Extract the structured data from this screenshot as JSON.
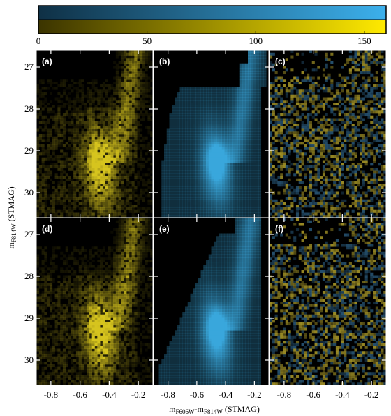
{
  "colors": {
    "panel_bg": "#000000",
    "data": "#d6c41e",
    "model": "#39a7dc",
    "residual_pos": "#b3a12a",
    "residual_neg": "#2b5d80",
    "colorbar_top_left": "#0f3045",
    "colorbar_top_right": "#3cb0ec",
    "colorbar_bottom_left": "#3b3400",
    "colorbar_bottom_right": "#ffea00"
  },
  "chart_data": {
    "type": "heatmap",
    "title": "",
    "colorbar": {
      "range": [
        0,
        160
      ],
      "ticks": [
        {
          "value": 0,
          "label": "0"
        },
        {
          "value": 50,
          "label": "50"
        },
        {
          "value": 100,
          "label": "100"
        },
        {
          "value": 150,
          "label": "150"
        }
      ]
    },
    "x_axis": {
      "label_main": "m",
      "label_sub1": "F606W",
      "label_mid": "-m",
      "label_sub2": "F814W",
      "label_tail": " (STMAG)",
      "range": [
        -0.9,
        -0.1
      ],
      "ticks": [
        {
          "value": -0.8,
          "label": "-0.8"
        },
        {
          "value": -0.6,
          "label": "-0.6"
        },
        {
          "value": -0.4,
          "label": "-0.4"
        },
        {
          "value": -0.2,
          "label": "-0.2"
        }
      ]
    },
    "y_axis": {
      "label_main": "m",
      "label_sub": "F814W",
      "label_tail": " (STMAG)",
      "range": [
        26.6,
        30.6
      ],
      "inverted": true,
      "ticks": [
        {
          "value": 27,
          "label": "27"
        },
        {
          "value": 28,
          "label": "28"
        },
        {
          "value": 29,
          "label": "29"
        },
        {
          "value": 30,
          "label": "30"
        }
      ]
    },
    "panels": [
      {
        "label": "(a)",
        "kind": "data"
      },
      {
        "label": "(b)",
        "kind": "model"
      },
      {
        "label": "(c)",
        "kind": "residual"
      },
      {
        "label": "(d)",
        "kind": "data"
      },
      {
        "label": "(e)",
        "kind": "model"
      },
      {
        "label": "(f)",
        "kind": "residual"
      }
    ]
  }
}
